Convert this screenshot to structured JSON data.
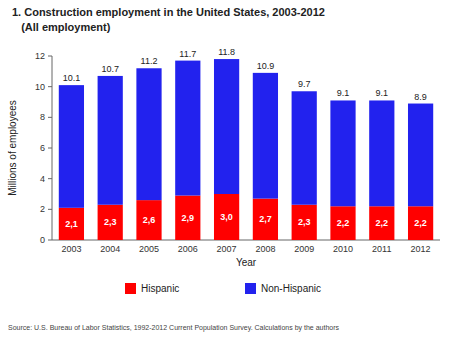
{
  "chart_data": {
    "type": "bar",
    "stacked": true,
    "title": "1. Construction employment in the United States, 2003-2012",
    "subtitle": "   (All employment)",
    "source": "Source: U.S. Bureau of Labor Statistics, 1992-2012 Current Population Survey. Calculations by the authors",
    "x_label": "Year",
    "y_label": "Millions of employees",
    "categories": [
      "2003",
      "2004",
      "2005",
      "2006",
      "2007",
      "2008",
      "2009",
      "2010",
      "2011",
      "2012"
    ],
    "series": [
      {
        "name": "Hispanic",
        "color": "#ff0000",
        "data_labels": true,
        "values": [
          2.1,
          2.3,
          2.6,
          2.9,
          3.0,
          2.7,
          2.3,
          2.2,
          2.2,
          2.2
        ],
        "value_labels": [
          "2,1",
          "2,3",
          "2,6",
          "2,9",
          "3,0",
          "2,7",
          "2,3",
          "2,2",
          "2,2",
          "2,2"
        ]
      },
      {
        "name": "Non-Hispanic",
        "color": "#2222ee",
        "values": [
          8.0,
          8.4,
          8.6,
          8.8,
          8.8,
          8.2,
          7.4,
          6.9,
          6.9,
          6.7
        ]
      }
    ],
    "totals": [
      10.1,
      10.7,
      11.2,
      11.7,
      11.8,
      10.9,
      9.7,
      9.1,
      9.1,
      8.9
    ],
    "ylim": [
      0,
      12
    ],
    "yticks": [
      0,
      2,
      4,
      6,
      8,
      10,
      12
    ],
    "grid": false,
    "legend": "bottom"
  }
}
